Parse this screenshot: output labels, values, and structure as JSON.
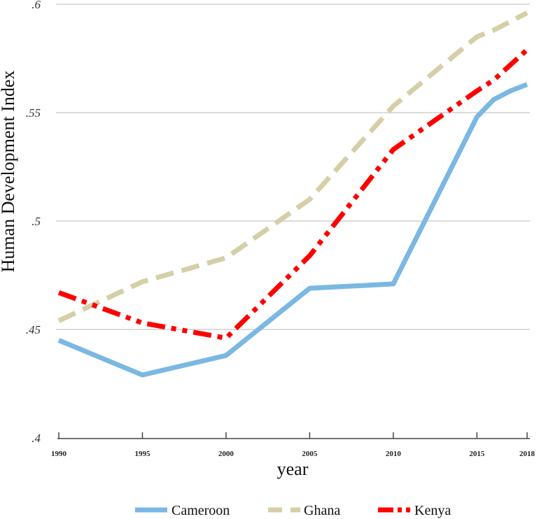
{
  "chart_data": {
    "type": "line",
    "title": "",
    "xlabel": "year",
    "ylabel": "Human Development Index",
    "x": [
      1990,
      1995,
      2000,
      2005,
      2010,
      2015,
      2016,
      2017,
      2018
    ],
    "xticks": [
      "1990",
      "1995",
      "2000",
      "2005",
      "2010",
      "2015",
      "2018"
    ],
    "xtick_values": [
      1990,
      1995,
      2000,
      2005,
      2010,
      2015,
      2018
    ],
    "yticks": [
      ".4",
      ".45",
      ".5",
      ".55",
      ".6"
    ],
    "ytick_values": [
      0.4,
      0.45,
      0.5,
      0.55,
      0.6
    ],
    "xlim": [
      1990,
      2018
    ],
    "ylim": [
      0.4,
      0.6
    ],
    "grid": "horizontal",
    "legend": "bottom",
    "series": [
      {
        "name": "Cameroon",
        "color": "#7ab8e3",
        "style": "solid",
        "values": [
          0.445,
          0.429,
          0.438,
          0.469,
          0.471,
          0.548,
          0.556,
          0.56,
          0.563
        ]
      },
      {
        "name": "Ghana",
        "color": "#d4cfa6",
        "style": "dash",
        "values": [
          0.454,
          0.472,
          0.483,
          0.51,
          0.553,
          0.585,
          0.588,
          0.592,
          0.596
        ]
      },
      {
        "name": "Kenya",
        "color": "#ff0000",
        "style": "dash-dot",
        "values": [
          0.467,
          0.453,
          0.446,
          0.484,
          0.533,
          0.56,
          0.565,
          0.572,
          0.579
        ]
      }
    ]
  }
}
